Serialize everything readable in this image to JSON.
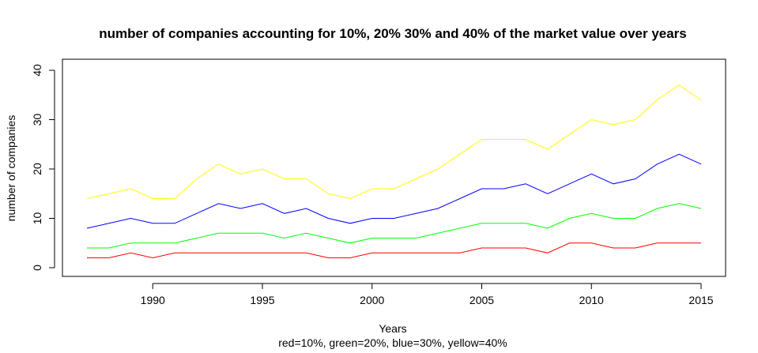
{
  "chart_data": {
    "type": "line",
    "title": "number of companies accounting for 10%, 20% 30% and 40% of the market value over years",
    "xlabel": "Years",
    "ylabel": "number of companies",
    "caption": "red=10%, green=20%, blue=30%, yellow=40%",
    "xlim": [
      1987,
      2015
    ],
    "ylim": [
      0,
      40
    ],
    "x_ticks": [
      1990,
      1995,
      2000,
      2005,
      2010,
      2015
    ],
    "y_ticks": [
      0,
      10,
      20,
      30,
      40
    ],
    "grid": false,
    "legend": "none",
    "x": [
      1987,
      1988,
      1989,
      1990,
      1991,
      1992,
      1993,
      1994,
      1995,
      1996,
      1997,
      1998,
      1999,
      2000,
      2001,
      2002,
      2003,
      2004,
      2005,
      2006,
      2007,
      2008,
      2009,
      2010,
      2011,
      2012,
      2013,
      2014,
      2015
    ],
    "series": [
      {
        "color": "#ff0000",
        "values": [
          2,
          2,
          3,
          2,
          3,
          3,
          3,
          3,
          3,
          3,
          3,
          2,
          2,
          3,
          3,
          3,
          3,
          3,
          4,
          4,
          4,
          3,
          5,
          5,
          4,
          4,
          5,
          5,
          5
        ]
      },
      {
        "color": "#00ff00",
        "values": [
          4,
          4,
          5,
          5,
          5,
          6,
          7,
          7,
          7,
          6,
          7,
          6,
          5,
          6,
          6,
          6,
          7,
          8,
          9,
          9,
          9,
          8,
          10,
          11,
          10,
          10,
          12,
          13,
          12
        ]
      },
      {
        "color": "#0000ff",
        "values": [
          8,
          9,
          10,
          9,
          9,
          11,
          13,
          12,
          13,
          11,
          12,
          10,
          9,
          10,
          10,
          11,
          12,
          14,
          16,
          16,
          17,
          15,
          17,
          19,
          17,
          18,
          21,
          23,
          21
        ]
      },
      {
        "color": "#ffff00",
        "values": [
          14,
          15,
          16,
          14,
          14,
          18,
          21,
          19,
          20,
          18,
          18,
          15,
          14,
          16,
          16,
          18,
          20,
          23,
          26,
          26,
          26,
          24,
          27,
          30,
          29,
          30,
          34,
          37,
          34
        ]
      }
    ]
  }
}
